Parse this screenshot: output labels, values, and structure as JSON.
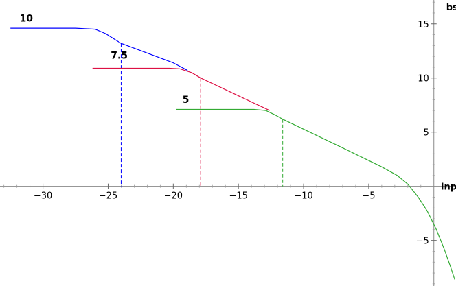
{
  "chart_data": {
    "type": "line",
    "xlabel": "lnp",
    "ylabel": "bsq",
    "xlim": [
      -33.3,
      1.7
    ],
    "ylim": [
      -9.2,
      17.2
    ],
    "x_ticks": [
      -30,
      -25,
      -20,
      -15,
      -10,
      -5
    ],
    "x_tick_labels": [
      "−30",
      "−25",
      "−20",
      "−15",
      "−10",
      "−5"
    ],
    "y_ticks": [
      -5,
      5,
      10,
      15
    ],
    "y_tick_labels": [
      "−5",
      "5",
      "10",
      "15"
    ],
    "grid": false,
    "series": [
      {
        "name": "10",
        "color": "#0000ff",
        "points": [
          [
            -32.5,
            14.6
          ],
          [
            -27.5,
            14.6
          ],
          [
            -26.0,
            14.5
          ],
          [
            -25.2,
            14.1
          ],
          [
            -24.0,
            13.2
          ],
          [
            -20.0,
            11.4
          ],
          [
            -18.9,
            10.7
          ]
        ],
        "label_at": [
          -31.8,
          15.2
        ],
        "crossover_x": -24.0,
        "crossover_y": 13.2
      },
      {
        "name": "7.5",
        "color": "#dd1144",
        "points": [
          [
            -26.2,
            10.9
          ],
          [
            -20.3,
            10.9
          ],
          [
            -19.5,
            10.85
          ],
          [
            -18.6,
            10.5
          ],
          [
            -17.9,
            10.0
          ],
          [
            -12.6,
            7.0
          ]
        ],
        "label_at": [
          -24.8,
          11.8
        ],
        "crossover_x": -17.9,
        "crossover_y": 10.0
      },
      {
        "name": "5",
        "color": "#33aa33",
        "points": [
          [
            -19.8,
            7.1
          ],
          [
            -13.8,
            7.1
          ],
          [
            -12.9,
            7.0
          ],
          [
            -12.2,
            6.6
          ],
          [
            -11.6,
            6.2
          ],
          [
            -7.0,
            3.55
          ],
          [
            -4.0,
            1.8
          ],
          [
            -2.8,
            1.0
          ],
          [
            -2.0,
            0.2
          ],
          [
            -1.2,
            -1.0
          ],
          [
            -0.5,
            -2.3
          ],
          [
            0.2,
            -4.0
          ],
          [
            0.8,
            -5.8
          ],
          [
            1.3,
            -7.5
          ],
          [
            1.6,
            -8.6
          ]
        ],
        "label_at": [
          -19.3,
          7.7
        ],
        "crossover_x": -11.6,
        "crossover_y": 6.2
      }
    ]
  }
}
